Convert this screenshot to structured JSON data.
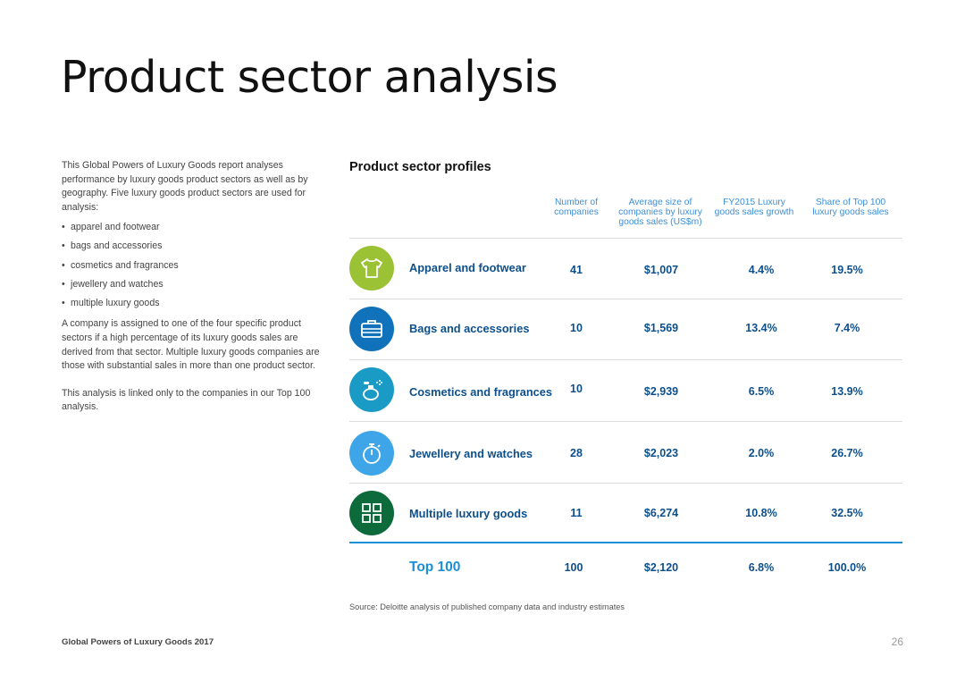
{
  "page": {
    "title": "Product sector analysis",
    "footer": "Global Powers of Luxury Goods 2017",
    "page_number": "26"
  },
  "intro": {
    "paragraph1": "This Global Powers of Luxury Goods report analyses performance by luxury goods product sectors as well as by geography. Five luxury goods product sectors are used for analysis:",
    "bullets": [
      "apparel and footwear",
      "bags and accessories",
      "cosmetics and fragrances",
      "jewellery and watches",
      "multiple luxury goods"
    ],
    "paragraph2": "A company is assigned to one of the four specific product sectors if a high percentage of its luxury goods sales are derived from that sector. Multiple luxury goods companies are those with substantial sales in more than one product sector.",
    "paragraph3": "This analysis is linked only to the companies in our Top 100 analysis."
  },
  "table": {
    "title": "Product sector profiles",
    "columns": [
      "Number of companies",
      "Average size of companies by luxury goods sales (US$m)",
      "FY2015 Luxury goods sales growth",
      "Share of Top 100 luxury goods sales"
    ],
    "rows": [
      {
        "sector": "Apparel and footwear",
        "icon": "tshirt-icon",
        "color": "#9bc235",
        "companies": "41",
        "avg_size": "$1,007",
        "growth": "4.4%",
        "share": "19.5%"
      },
      {
        "sector": "Bags and accessories",
        "icon": "briefcase-icon",
        "color": "#0f72ba",
        "companies": "10",
        "avg_size": "$1,569",
        "growth": "13.4%",
        "share": "7.4%"
      },
      {
        "sector": "Cosmetics and fragrances",
        "icon": "perfume-bottle-icon",
        "color": "#1a9bc6",
        "companies": "10",
        "avg_size": "$2,939",
        "growth": "6.5%",
        "share": "13.9%"
      },
      {
        "sector": "Jewellery and watches",
        "icon": "stopwatch-icon",
        "color": "#3da5e8",
        "companies": "28",
        "avg_size": "$2,023",
        "growth": "2.0%",
        "share": "26.7%"
      },
      {
        "sector": "Multiple luxury goods",
        "icon": "grid-squares-icon",
        "color": "#0d6b3b",
        "companies": "11",
        "avg_size": "$6,274",
        "growth": "10.8%",
        "share": "32.5%"
      }
    ],
    "total": {
      "label": "Top 100",
      "companies": "100",
      "avg_size": "$2,120",
      "growth": "6.8%",
      "share": "100.0%"
    },
    "source": "Source: Deloitte analysis of published company data and industry estimates"
  }
}
